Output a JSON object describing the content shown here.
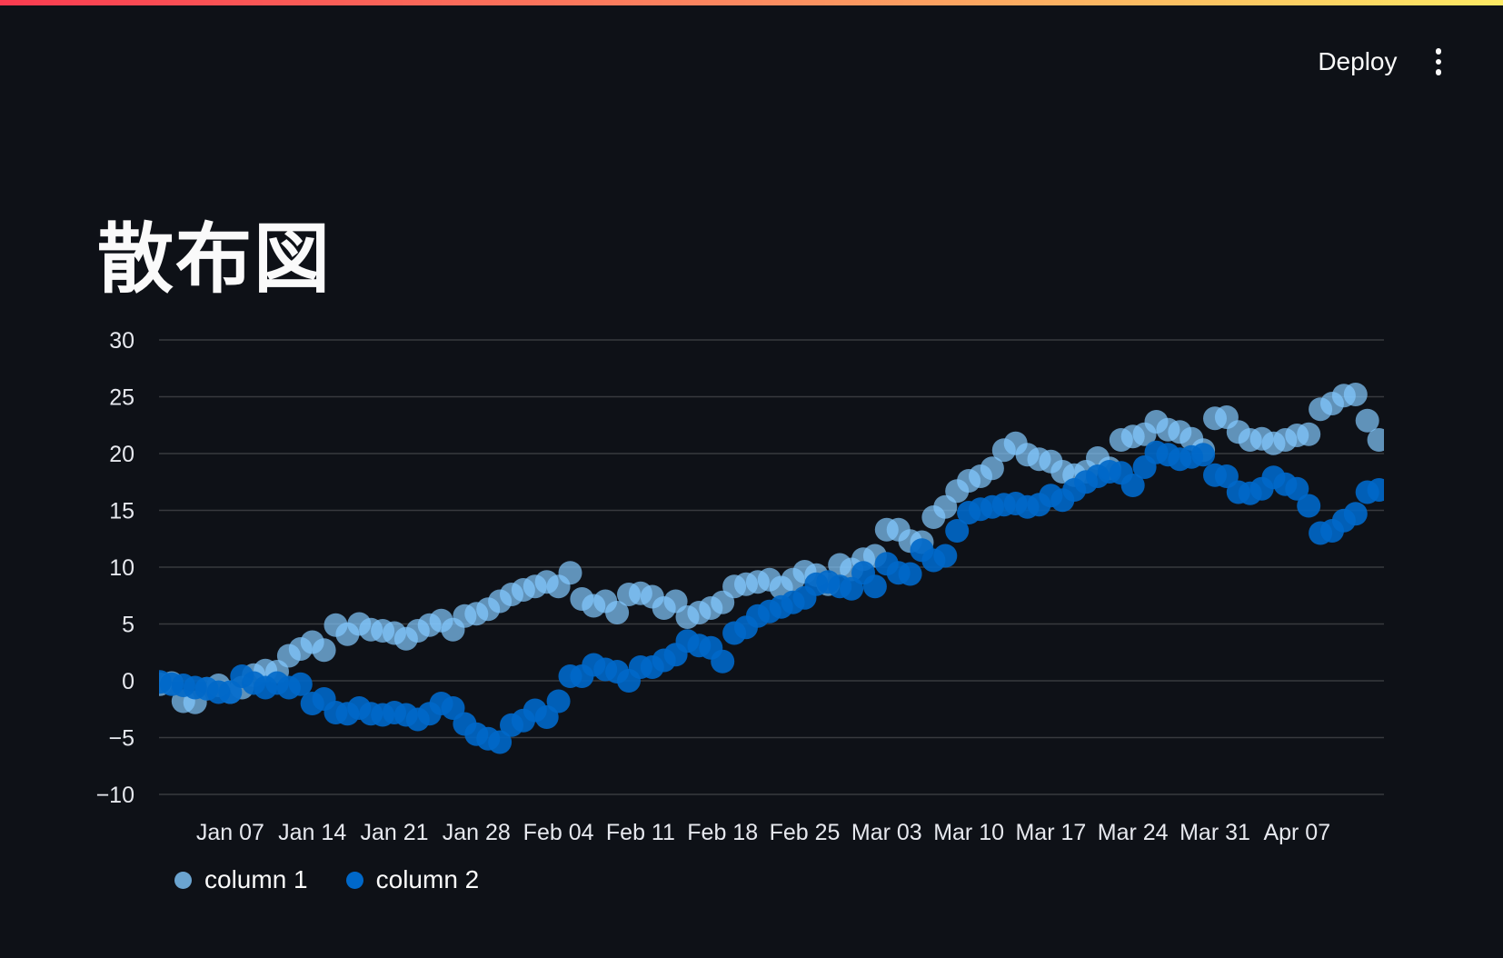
{
  "app": {
    "toolbar": {
      "deploy_label": "Deploy",
      "menu_icon": "kebab-menu"
    },
    "decoration_gradient": [
      "#fa3b50",
      "#fb8a60",
      "#fdea64"
    ]
  },
  "page": {
    "title": "散布図"
  },
  "colors": {
    "background": "#0e1117",
    "text": "#fafafa",
    "gridline": "rgba(250,250,250,0.18)",
    "axis_label": "#e6e8ee",
    "series1": "#83c9ff",
    "series2": "#0068c9"
  },
  "chart_data": {
    "type": "scatter",
    "title": "",
    "xlabel": "",
    "ylabel": "",
    "x_unit": "daily dates starting Jan 01",
    "x_tick_labels": [
      "Jan 07",
      "Jan 14",
      "Jan 21",
      "Jan 28",
      "Feb 04",
      "Feb 11",
      "Feb 18",
      "Feb 25",
      "Mar 03",
      "Mar 10",
      "Mar 17",
      "Mar 24",
      "Mar 31",
      "Apr 07"
    ],
    "x_tick_day_index": [
      6,
      13,
      20,
      27,
      34,
      41,
      48,
      55,
      62,
      69,
      76,
      83,
      90,
      97
    ],
    "y_ticks": [
      30,
      25,
      20,
      15,
      10,
      5,
      0,
      -5,
      -10
    ],
    "ylim": [
      -10,
      30
    ],
    "grid": true,
    "legend_position": "bottom-left",
    "marker_radius_px": 13,
    "series": [
      {
        "name": "column 1",
        "color": "#83c9ff",
        "opacity": 0.7,
        "values": [
          -0.3,
          -0.2,
          -1.8,
          -1.9,
          -0.7,
          -0.4,
          -1.0,
          -0.6,
          0.5,
          0.9,
          0.8,
          2.2,
          2.8,
          3.4,
          2.7,
          4.9,
          4.1,
          5.0,
          4.5,
          4.4,
          4.2,
          3.7,
          4.4,
          4.9,
          5.3,
          4.5,
          5.7,
          5.9,
          6.3,
          7.0,
          7.6,
          8.0,
          8.3,
          8.7,
          8.3,
          9.5,
          7.2,
          6.6,
          7.0,
          6.0,
          7.6,
          7.7,
          7.4,
          6.4,
          7.0,
          5.6,
          6.0,
          6.4,
          6.9,
          8.3,
          8.5,
          8.7,
          8.9,
          8.2,
          8.9,
          9.6,
          9.3,
          8.5,
          10.2,
          9.8,
          10.7,
          11.0,
          13.3,
          13.3,
          12.3,
          12.2,
          14.4,
          15.3,
          16.7,
          17.6,
          18.0,
          18.7,
          20.3,
          20.9,
          19.9,
          19.5,
          19.3,
          18.4,
          18.1,
          18.4,
          19.6,
          18.7,
          21.2,
          21.5,
          21.7,
          22.8,
          22.1,
          21.9,
          21.3,
          20.3,
          23.1,
          23.2,
          21.9,
          21.2,
          21.3,
          20.9,
          21.2,
          21.6,
          21.7,
          23.9,
          24.4,
          25.1,
          25.2,
          22.9,
          21.2
        ]
      },
      {
        "name": "column 2",
        "color": "#0068c9",
        "opacity": 0.9,
        "values": [
          -0.1,
          -0.3,
          -0.4,
          -0.6,
          -0.7,
          -1.0,
          -1.0,
          0.4,
          -0.2,
          -0.6,
          -0.2,
          -0.6,
          -0.3,
          -2.0,
          -1.6,
          -2.8,
          -2.9,
          -2.4,
          -2.9,
          -3.0,
          -2.8,
          -3.0,
          -3.4,
          -2.9,
          -2.0,
          -2.4,
          -3.8,
          -4.7,
          -5.1,
          -5.4,
          -3.9,
          -3.5,
          -2.6,
          -3.2,
          -1.8,
          0.4,
          0.4,
          1.4,
          1.0,
          0.8,
          0.0,
          1.2,
          1.2,
          1.8,
          2.3,
          3.5,
          3.1,
          2.9,
          1.7,
          4.2,
          4.7,
          5.7,
          6.1,
          6.5,
          6.9,
          7.3,
          8.5,
          8.7,
          8.3,
          8.1,
          9.5,
          8.3,
          10.3,
          9.5,
          9.4,
          11.5,
          10.6,
          11.0,
          13.2,
          14.8,
          15.1,
          15.3,
          15.5,
          15.6,
          15.3,
          15.5,
          16.3,
          15.9,
          16.8,
          17.5,
          18.0,
          18.4,
          18.3,
          17.2,
          18.8,
          20.1,
          19.9,
          19.5,
          19.7,
          19.9,
          18.1,
          18.0,
          16.6,
          16.5,
          16.9,
          17.9,
          17.3,
          16.9,
          15.4,
          13.0,
          13.2,
          14.1,
          14.7,
          16.6,
          16.8
        ]
      }
    ],
    "legend": [
      "column 1",
      "column 2"
    ]
  }
}
